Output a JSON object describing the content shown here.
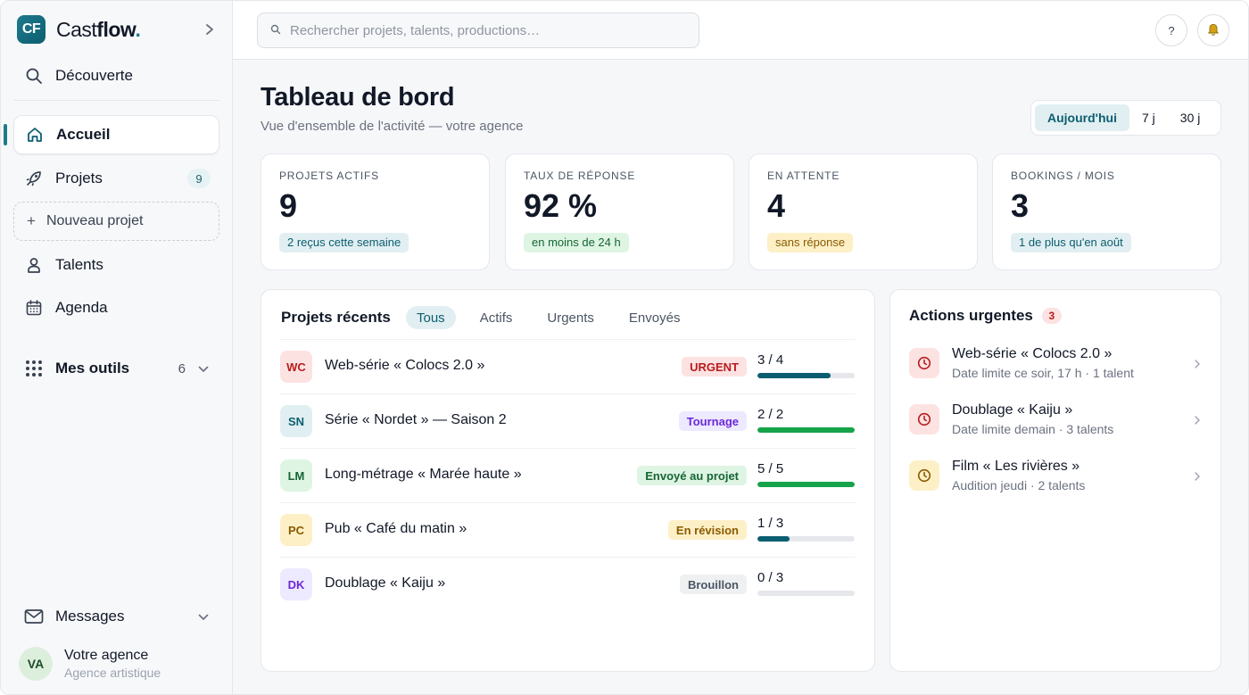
{
  "brand": {
    "logo": "CF",
    "name_part1": "Cast",
    "name_part2": "flow",
    "name_dot": "."
  },
  "sidebar": {
    "collapse_icon": "chevron-right-icon",
    "discover": "Découverte",
    "home": "Accueil",
    "projects": "Projets",
    "projects_count": "9",
    "new_project": "Nouveau projet",
    "talents": "Talents",
    "agenda": "Agenda",
    "tools": "Mes outils",
    "tools_count": "6",
    "messages": "Messages",
    "user": {
      "initials": "VA",
      "name": "Votre agence",
      "role": "Agence artistique"
    }
  },
  "topbar": {
    "search_placeholder": "Rechercher projets, talents, productions…",
    "help": "?"
  },
  "header": {
    "title": "Tableau de bord",
    "subtitle": "Vue d'ensemble de l'activité — votre agence",
    "ranges": [
      "Aujourd'hui",
      "7 j",
      "30 j"
    ],
    "selected_range": "Aujourd'hui"
  },
  "kpis": [
    {
      "label": "Projets actifs",
      "value": "9",
      "tag": "2 reçus cette semaine",
      "tag_bg": "#e2eff2",
      "tag_fg": "#0b5e70"
    },
    {
      "label": "Taux de réponse",
      "value": "92 %",
      "tag": "en moins de 24 h",
      "tag_bg": "#dff5e4",
      "tag_fg": "#166534"
    },
    {
      "label": "En attente",
      "value": "4",
      "tag": "sans réponse",
      "tag_bg": "#fdf0c7",
      "tag_fg": "#8a5a00"
    },
    {
      "label": "Bookings / mois",
      "value": "3",
      "tag": "1 de plus qu'en août",
      "tag_bg": "#e2eff2",
      "tag_fg": "#0b5e70"
    }
  ],
  "recent": {
    "title": "Projets récents",
    "tabs": [
      "Tous",
      "Actifs",
      "Urgents",
      "Envoyés"
    ],
    "selected_tab": "Tous",
    "rows": [
      {
        "initials": "WC",
        "avatar_bg": "#fde2e2",
        "avatar_fg": "#b91c1c",
        "name": "Web-série « Colocs 2.0 »",
        "status": "URGENT",
        "status_bg": "#fde2e2",
        "status_fg": "#b91c1c",
        "progress": "3 / 4",
        "fraction": 0.75,
        "bar_color": "#0b5e70"
      },
      {
        "initials": "SN",
        "avatar_bg": "#e2eff2",
        "avatar_fg": "#0b5e70",
        "name": "Série « Nordet » — Saison 2",
        "status": "Tournage",
        "status_bg": "#ede9fe",
        "status_fg": "#6d28d9",
        "progress": "2 / 2",
        "fraction": 1.0,
        "bar_color": "#16a34a"
      },
      {
        "initials": "LM",
        "avatar_bg": "#dff5e4",
        "avatar_fg": "#166534",
        "name": "Long-métrage « Marée haute »",
        "status": "Envoyé au projet",
        "status_bg": "#dff5e4",
        "status_fg": "#166534",
        "progress": "5 / 5",
        "fraction": 1.0,
        "bar_color": "#16a34a"
      },
      {
        "initials": "PC",
        "avatar_bg": "#fdf0c7",
        "avatar_fg": "#8a5a00",
        "name": "Pub « Café du matin »",
        "status": "En révision",
        "status_bg": "#fdf0c7",
        "status_fg": "#8a5a00",
        "progress": "1 / 3",
        "fraction": 0.333,
        "bar_color": "#0b5e70"
      },
      {
        "initials": "DK",
        "avatar_bg": "#ede9fe",
        "avatar_fg": "#6d28d9",
        "name": "Doublage « Kaiju »",
        "status": "Brouillon",
        "status_bg": "#eef0f2",
        "status_fg": "#4b5563",
        "progress": "0 / 3",
        "fraction": 0.0,
        "bar_color": "#0b5e70"
      }
    ]
  },
  "urgent": {
    "title": "Actions urgentes",
    "count": "3",
    "items": [
      {
        "title": "Web-série « Colocs 2.0 »",
        "sub": "Date limite ce soir, 17 h · 1 talent",
        "icon_bg": "#fde2e2",
        "icon_fg": "#b91c1c"
      },
      {
        "title": "Doublage « Kaiju »",
        "sub": "Date limite demain · 3 talents",
        "icon_bg": "#fde2e2",
        "icon_fg": "#b91c1c"
      },
      {
        "title": "Film « Les rivières »",
        "sub": "Audition jeudi · 2 talents",
        "icon_bg": "#fdf0c7",
        "icon_fg": "#8a5a00"
      }
    ]
  }
}
